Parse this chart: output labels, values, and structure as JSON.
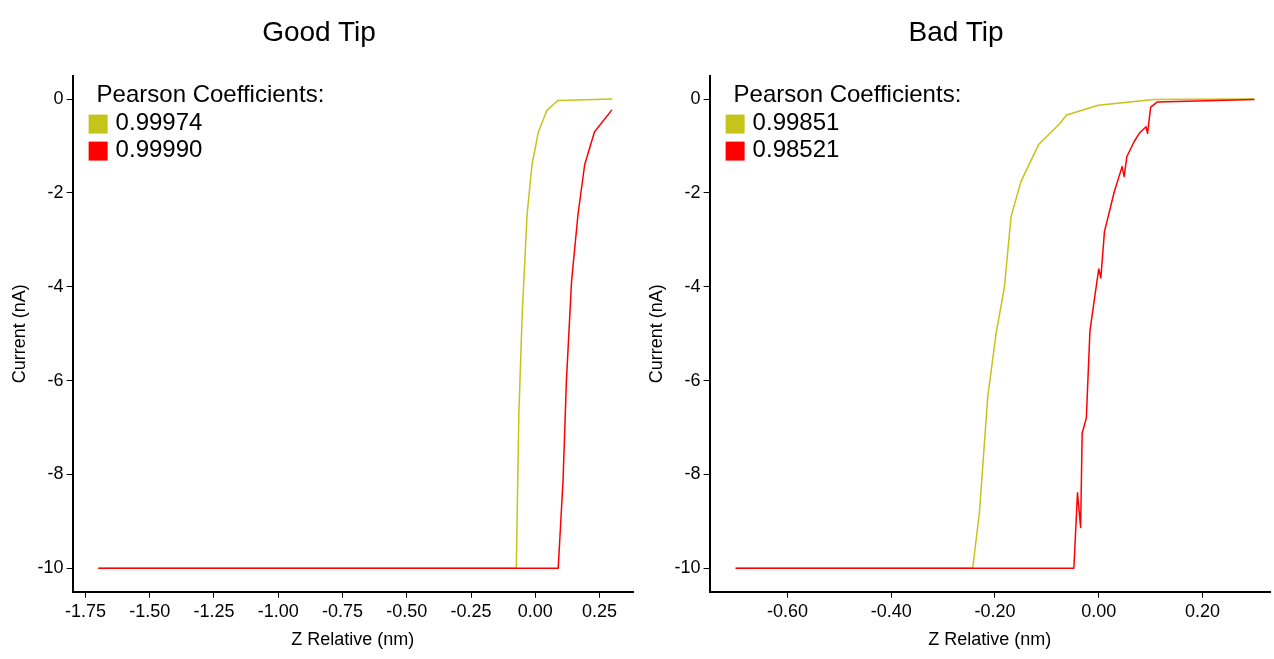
{
  "chart_data": [
    {
      "type": "line",
      "title": "Good Tip",
      "xlabel": "Z Relative (nm)",
      "ylabel": "Current (nA)",
      "legend_title": "Pearson Coefficients:",
      "legend": "top left",
      "grid": false,
      "marker": "none",
      "line_style": "solid",
      "xlim": [
        -1.8,
        0.38
      ],
      "ylim": [
        -10.5,
        0.5
      ],
      "xticks": [
        {
          "value": -1.75,
          "label": "-1.75"
        },
        {
          "value": -1.5,
          "label": "-1.50"
        },
        {
          "value": -1.25,
          "label": "-1.25"
        },
        {
          "value": -1,
          "label": "-1.00"
        },
        {
          "value": -0.75,
          "label": "-0.75"
        },
        {
          "value": -0.5,
          "label": "-0.50"
        },
        {
          "value": -0.25,
          "label": "-0.25"
        },
        {
          "value": 0,
          "label": "0.00"
        },
        {
          "value": 0.25,
          "label": "0.25"
        }
      ],
      "yticks": [
        0,
        -2,
        -4,
        -6,
        -8,
        -10
      ],
      "series": [
        {
          "name": "0.99974",
          "color": "#c4c41a",
          "x": [
            -1.7,
            -0.074,
            -0.064,
            -0.051,
            -0.032,
            -0.013,
            0.012,
            0.045,
            0.088,
            0.3
          ],
          "values": [
            -10,
            -10,
            -6.7,
            -4.58,
            -2.46,
            -1.4,
            -0.7,
            -0.24,
            -0.03,
            0
          ]
        },
        {
          "name": "0.99990",
          "color": "#ff0000",
          "x": [
            -1.7,
            0.089,
            0.108,
            0.121,
            0.141,
            0.166,
            0.192,
            0.23,
            0.298
          ],
          "values": [
            -10,
            -10,
            -8.11,
            -6.0,
            -3.88,
            -2.46,
            -1.4,
            -0.7,
            -0.23
          ]
        }
      ]
    },
    {
      "type": "line",
      "title": "Bad Tip",
      "xlabel": "Z Relative (nm)",
      "ylabel": "Current (nA)",
      "legend_title": "Pearson Coefficients:",
      "legend": "top left",
      "grid": false,
      "marker": "none",
      "line_style": "solid",
      "xlim": [
        -0.75,
        0.33
      ],
      "ylim": [
        -10.5,
        0.5
      ],
      "xticks": [
        {
          "value": -0.6,
          "label": "-0.60"
        },
        {
          "value": -0.4,
          "label": "-0.40"
        },
        {
          "value": -0.2,
          "label": "-0.20"
        },
        {
          "value": 0,
          "label": "0.00"
        },
        {
          "value": 0.2,
          "label": "0.20"
        }
      ],
      "yticks": [
        0,
        -2,
        -4,
        -6,
        -8,
        -10
      ],
      "series": [
        {
          "name": "0.99851",
          "color": "#c4c41a",
          "x": [
            -0.7,
            -0.243,
            -0.23,
            -0.214,
            -0.198,
            -0.182,
            -0.169,
            -0.15,
            -0.116,
            -0.075,
            -0.062,
            -0.001,
            0.106,
            0.3
          ],
          "values": [
            -10,
            -10,
            -8.81,
            -6.35,
            -5.0,
            -4.02,
            -2.5,
            -1.76,
            -0.97,
            -0.52,
            -0.34,
            -0.13,
            -0.01,
            0
          ]
        },
        {
          "name": "0.98521",
          "color": "#ff0000",
          "x": [
            -0.7,
            -0.048,
            -0.041,
            -0.035,
            -0.032,
            -0.024,
            -0.017,
            -0.008,
            0.0,
            0.004,
            0.011,
            0.03,
            0.045,
            0.049,
            0.054,
            0.068,
            0.078,
            0.091,
            0.094,
            0.1,
            0.113,
            0.3
          ],
          "values": [
            -10,
            -10,
            -8.39,
            -9.13,
            -7.12,
            -6.8,
            -4.94,
            -4.23,
            -3.62,
            -3.81,
            -2.82,
            -1.97,
            -1.44,
            -1.65,
            -1.23,
            -0.91,
            -0.73,
            -0.59,
            -0.73,
            -0.17,
            -0.06,
            -0.01
          ]
        }
      ]
    }
  ]
}
